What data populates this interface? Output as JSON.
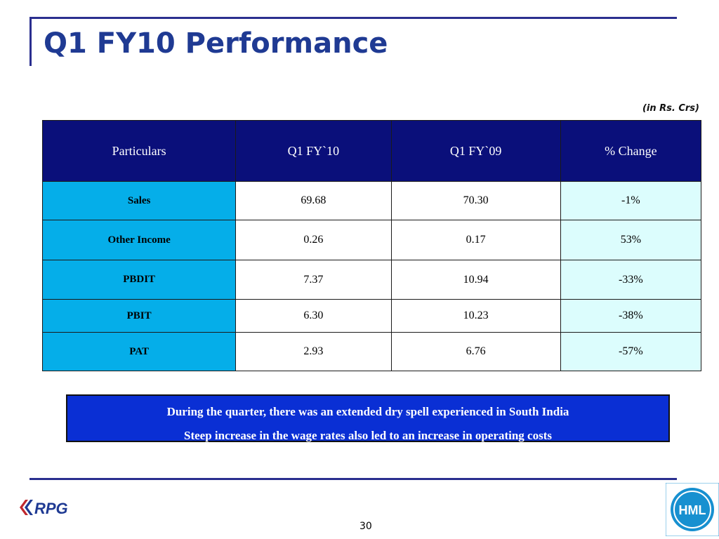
{
  "slide": {
    "title": "Q1 FY10 Performance",
    "unit_note": "(in Rs. Crs)",
    "page_number": "30"
  },
  "table": {
    "headers": [
      "Particulars",
      "Q1 FY`10",
      "Q1 FY`09",
      "% Change"
    ],
    "rows": [
      {
        "particular": "Sales",
        "q1_fy10": "69.68",
        "q1_fy09": "70.30",
        "change": "-1%"
      },
      {
        "particular": "Other Income",
        "q1_fy10": "0.26",
        "q1_fy09": "0.17",
        "change": "53%"
      },
      {
        "particular": "PBDIT",
        "q1_fy10": "7.37",
        "q1_fy09": "10.94",
        "change": "-33%"
      },
      {
        "particular": "PBIT",
        "q1_fy10": "6.30",
        "q1_fy09": "10.23",
        "change": "-38%"
      },
      {
        "particular": "PAT",
        "q1_fy10": "2.93",
        "q1_fy09": "6.76",
        "change": "-57%"
      }
    ]
  },
  "notes": [
    "During the quarter, there was an extended dry spell experienced in South India",
    "Steep increase in the wage rates also led to an increase in operating costs"
  ],
  "logos": {
    "left": {
      "icon": "rpg-logo-icon",
      "text": "RPG"
    },
    "right": {
      "icon": "hml-emblem-icon",
      "text": "HML"
    }
  },
  "colors": {
    "title": "#1f3a93",
    "header_bg": "#0a0f7a",
    "label_bg": "#05aee9",
    "change_bg": "#dcfdfd",
    "notes_bg": "#0a2fd4"
  }
}
